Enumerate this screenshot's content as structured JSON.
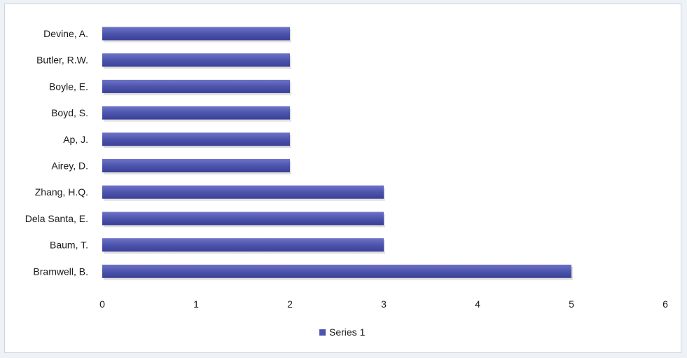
{
  "chart_data": {
    "type": "bar",
    "orientation": "horizontal",
    "categories": [
      "Devine, A.",
      "Butler, R.W.",
      "Boyle, E.",
      "Boyd, S.",
      "Ap, J.",
      "Airey, D.",
      "Zhang, H.Q.",
      "Dela Santa, E.",
      "Baum, T.",
      "Bramwell, B."
    ],
    "series": [
      {
        "name": "Series 1",
        "values": [
          2,
          2,
          2,
          2,
          2,
          2,
          3,
          3,
          3,
          5
        ],
        "color": "#4d54ad"
      }
    ],
    "xlim": [
      0,
      6
    ],
    "xticks": [
      "0",
      "1",
      "2",
      "3",
      "4",
      "5",
      "6"
    ],
    "title": "",
    "xlabel": "",
    "ylabel": "",
    "grid": false,
    "legend": "bottom-center"
  }
}
